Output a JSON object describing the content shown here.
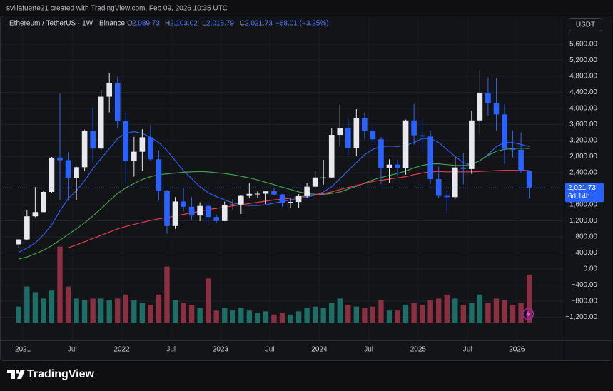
{
  "header": {
    "attribution": "svillafuerte21 created with TradingView.com, Feb 09, 2026 10:35 UTC"
  },
  "legend": {
    "symbol": "Ethereum / TetherUS · 1W · Binance",
    "open_label": "O",
    "open": "2,089.73",
    "high_label": "H",
    "high": "2,103.02",
    "low_label": "L",
    "low": "2,018.79",
    "close_label": "C",
    "close": "2,021.73",
    "change": "−68.01 (−3.25%)"
  },
  "currency": "USDT",
  "footer": {
    "brand": "TradingView"
  },
  "chart_data": {
    "type": "candlestick",
    "x": [
      "2020-12",
      "2021-01",
      "2021-02",
      "2021-03",
      "2021-04",
      "2021-05",
      "2021-06",
      "2021-07",
      "2021-08",
      "2021-09",
      "2021-10",
      "2021-11",
      "2021-12",
      "2022-01",
      "2022-02",
      "2022-03",
      "2022-04",
      "2022-05",
      "2022-06",
      "2022-07",
      "2022-08",
      "2022-09",
      "2022-10",
      "2022-11",
      "2022-12",
      "2023-01",
      "2023-02",
      "2023-03",
      "2023-04",
      "2023-05",
      "2023-06",
      "2023-07",
      "2023-08",
      "2023-09",
      "2023-10",
      "2023-11",
      "2023-12",
      "2024-01",
      "2024-02",
      "2024-03",
      "2024-04",
      "2024-05",
      "2024-06",
      "2024-07",
      "2024-08",
      "2024-09",
      "2024-10",
      "2024-11",
      "2024-12",
      "2025-01",
      "2025-02",
      "2025-03",
      "2025-04",
      "2025-05",
      "2025-06",
      "2025-07",
      "2025-08",
      "2025-09",
      "2025-10",
      "2025-11",
      "2025-12",
      "2026-01",
      "2026-02"
    ],
    "open": [
      615,
      737,
      1312,
      1417,
      1920,
      2775,
      2710,
      2275,
      2535,
      3430,
      3000,
      4290,
      4630,
      3680,
      2690,
      2920,
      3280,
      2730,
      1940,
      1070,
      1680,
      1550,
      1330,
      1570,
      1295,
      1195,
      1585,
      1605,
      1820,
      1870,
      1875,
      1935,
      1855,
      1645,
      1670,
      1815,
      2050,
      2280,
      2280,
      3340,
      3500,
      3010,
      3760,
      3430,
      3230,
      2510,
      2600,
      2510,
      3700,
      3330,
      3300,
      2240,
      1820,
      1790,
      2530,
      2490,
      3700,
      4390,
      4140,
      3850,
      2990,
      2970,
      2440
    ],
    "high": [
      750,
      1475,
      2040,
      1945,
      2790,
      4370,
      2910,
      2550,
      3470,
      4030,
      4460,
      4870,
      4780,
      3880,
      3290,
      3480,
      3580,
      2960,
      1970,
      1790,
      2030,
      1790,
      1660,
      1680,
      1350,
      1680,
      1740,
      1840,
      2140,
      1930,
      1935,
      2030,
      1870,
      1750,
      1865,
      2140,
      2440,
      2720,
      3520,
      4090,
      3730,
      3980,
      3890,
      3560,
      3290,
      2730,
      2720,
      3720,
      4110,
      3740,
      3440,
      2550,
      1960,
      2790,
      2880,
      3940,
      4950,
      4770,
      4750,
      4100,
      3450,
      3400,
      2450
    ],
    "low": [
      535,
      715,
      1290,
      1415,
      1900,
      1720,
      1700,
      1720,
      2450,
      2650,
      2960,
      3900,
      3500,
      2160,
      2300,
      2450,
      2700,
      1700,
      880,
      1000,
      1420,
      1220,
      1190,
      1070,
      1150,
      1190,
      1460,
      1370,
      1760,
      1760,
      1620,
      1835,
      1550,
      1530,
      1520,
      1760,
      2040,
      2100,
      2270,
      3050,
      2850,
      2810,
      3240,
      3080,
      2110,
      2150,
      2300,
      2350,
      3100,
      2920,
      2120,
      1760,
      1385,
      1750,
      2110,
      2370,
      3350,
      3820,
      3440,
      2620,
      2770,
      2400,
      1750
    ],
    "close": [
      737,
      1312,
      1417,
      1920,
      2775,
      2710,
      2275,
      2535,
      3430,
      3000,
      4290,
      4630,
      3680,
      2690,
      2920,
      3280,
      2730,
      1940,
      1070,
      1680,
      1550,
      1330,
      1570,
      1295,
      1195,
      1585,
      1605,
      1820,
      1870,
      1875,
      1935,
      1855,
      1645,
      1670,
      1815,
      2050,
      2280,
      2280,
      3340,
      3500,
      3010,
      3760,
      3430,
      3230,
      2510,
      2600,
      2510,
      3700,
      3330,
      3300,
      2240,
      1820,
      1790,
      2530,
      2490,
      3700,
      4390,
      4140,
      3850,
      2990,
      2970,
      2440,
      2021.73
    ],
    "up_color": "#e8e9ee",
    "down_color": "#2962ff",
    "lines": [
      {
        "color": "#2f5cf0",
        "values": [
          420,
          520,
          650,
          850,
          1100,
          1450,
          1750,
          1950,
          2200,
          2500,
          2750,
          3000,
          3250,
          3380,
          3420,
          3380,
          3280,
          3150,
          2950,
          2700,
          2450,
          2250,
          2050,
          1900,
          1800,
          1720,
          1650,
          1600,
          1580,
          1580,
          1600,
          1640,
          1680,
          1720,
          1760,
          1790,
          1840,
          1920,
          2050,
          2250,
          2450,
          2650,
          2850,
          2980,
          3050,
          3060,
          3050,
          3080,
          3150,
          3250,
          3250,
          3150,
          2980,
          2800,
          2650,
          2600,
          2700,
          2850,
          3050,
          3150,
          3150,
          3100,
          3050
        ]
      },
      {
        "color": "#43a047",
        "values": [
          250,
          300,
          380,
          470,
          580,
          720,
          860,
          1000,
          1150,
          1320,
          1500,
          1700,
          1880,
          2020,
          2130,
          2230,
          2300,
          2350,
          2370,
          2390,
          2410,
          2420,
          2430,
          2420,
          2400,
          2380,
          2350,
          2310,
          2270,
          2220,
          2160,
          2100,
          2040,
          1980,
          1920,
          1880,
          1860,
          1860,
          1880,
          1920,
          1990,
          2060,
          2140,
          2220,
          2280,
          2330,
          2380,
          2440,
          2520,
          2580,
          2620,
          2620,
          2600,
          2580,
          2580,
          2600,
          2700,
          2830,
          2930,
          2980,
          3000,
          3010,
          3000
        ]
      },
      {
        "color": "#e53950",
        "values": [
          null,
          null,
          null,
          null,
          null,
          null,
          530,
          600,
          680,
          760,
          840,
          920,
          1000,
          1060,
          1110,
          1160,
          1210,
          1250,
          1280,
          1320,
          1360,
          1400,
          1440,
          1480,
          1510,
          1540,
          1570,
          1600,
          1630,
          1660,
          1690,
          1720,
          1740,
          1760,
          1790,
          1820,
          1850,
          1880,
          1920,
          1980,
          2030,
          2080,
          2130,
          2180,
          2210,
          2240,
          2270,
          2300,
          2350,
          2390,
          2420,
          2430,
          2420,
          2420,
          2420,
          2420,
          2430,
          2440,
          2450,
          2460,
          2460,
          2460,
          2450
        ]
      }
    ],
    "volume": [
      20,
      45,
      38,
      30,
      40,
      95,
      45,
      30,
      28,
      30,
      30,
      28,
      30,
      35,
      28,
      25,
      22,
      35,
      70,
      28,
      25,
      22,
      18,
      55,
      15,
      18,
      15,
      18,
      15,
      12,
      14,
      10,
      12,
      10,
      14,
      18,
      20,
      18,
      25,
      30,
      22,
      20,
      18,
      20,
      28,
      15,
      15,
      22,
      25,
      22,
      28,
      30,
      35,
      30,
      22,
      25,
      35,
      25,
      30,
      28,
      22,
      25,
      60
    ],
    "volume_lim": [
      0,
      100
    ],
    "volume_up_color": "#1c6e66",
    "volume_down_color": "#8a3040",
    "last_price": {
      "value": 2021.73,
      "label": "2,021.73"
    },
    "countdown": "6d 14h",
    "xlim": [
      "2020-11",
      "2026-06"
    ],
    "xticks": [
      {
        "value": "2021-01",
        "label": "2021"
      },
      {
        "value": "2021-07",
        "label": "Jul"
      },
      {
        "value": "2022-01",
        "label": "2022"
      },
      {
        "value": "2022-07",
        "label": "Jul"
      },
      {
        "value": "2023-01",
        "label": "2023"
      },
      {
        "value": "2023-07",
        "label": "Jul"
      },
      {
        "value": "2024-01",
        "label": "2024"
      },
      {
        "value": "2024-07",
        "label": "Jul"
      },
      {
        "value": "2025-01",
        "label": "2025"
      },
      {
        "value": "2025-07",
        "label": "Jul"
      },
      {
        "value": "2026-01",
        "label": "2026"
      }
    ],
    "ylim": [
      -1740,
      5810
    ],
    "yticks": [
      {
        "value": 5600,
        "label": "5,600.00"
      },
      {
        "value": 5200,
        "label": "5,200.00"
      },
      {
        "value": 4800,
        "label": "4,800.00"
      },
      {
        "value": 4400,
        "label": "4,400.00"
      },
      {
        "value": 4000,
        "label": "4,000.00"
      },
      {
        "value": 3600,
        "label": "3,600.00"
      },
      {
        "value": 3200,
        "label": "3,200.00"
      },
      {
        "value": 2800,
        "label": "2,800.00"
      },
      {
        "value": 2400,
        "label": "2,400.00"
      },
      {
        "value": 1600,
        "label": "1,600.00"
      },
      {
        "value": 1200,
        "label": "1,200.00"
      },
      {
        "value": 800,
        "label": "800.00"
      },
      {
        "value": 400,
        "label": "400.00"
      },
      {
        "value": 0,
        "label": "0.00"
      },
      {
        "value": -400,
        "label": "−400.00"
      },
      {
        "value": -800,
        "label": "−800.00"
      },
      {
        "value": -1200,
        "label": "−1,200.00"
      }
    ],
    "grid": true
  }
}
